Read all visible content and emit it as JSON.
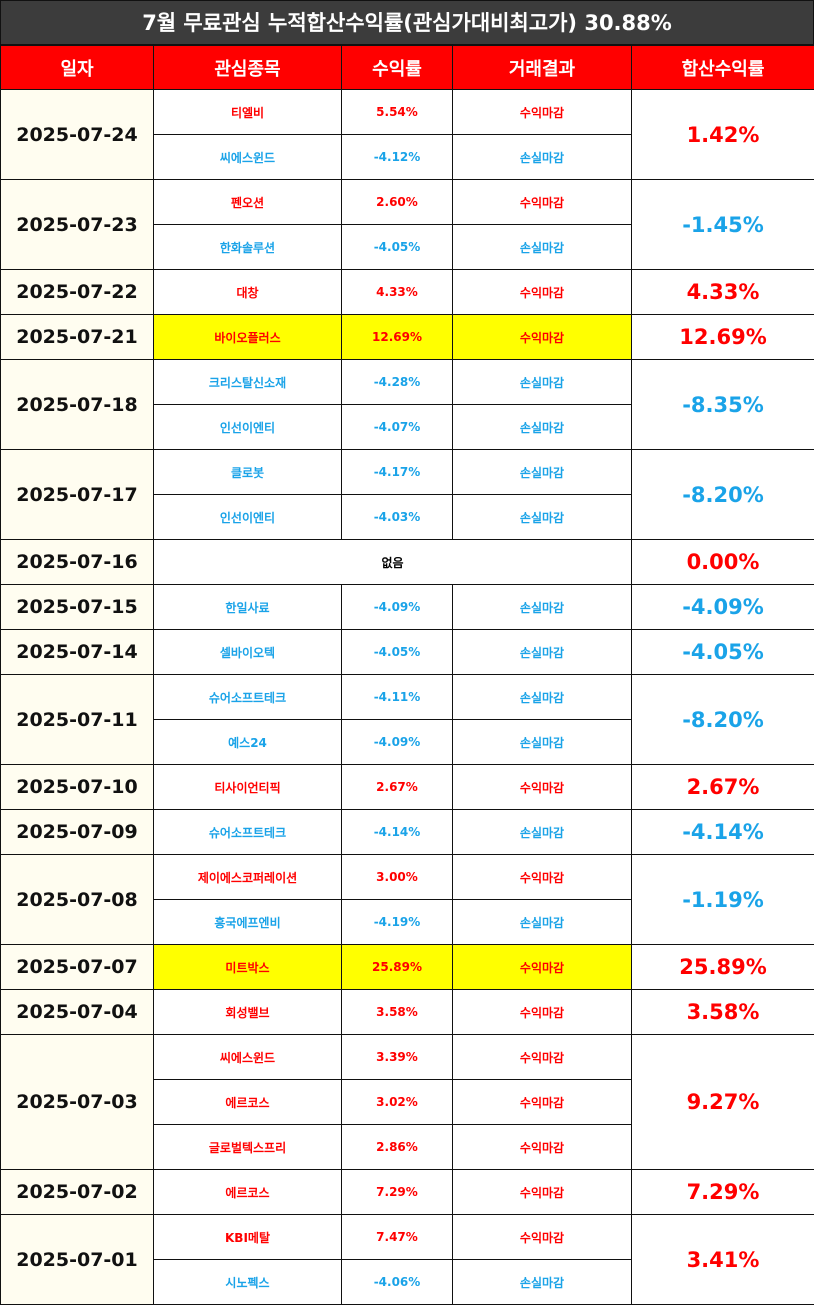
{
  "title": "7월 무료관심 누적합산수익률(관심가대비최고가) 30.88%",
  "headers": [
    "일자",
    "관심종목",
    "수익률",
    "거래결과",
    "합산수익률"
  ],
  "colors": {
    "positive": "#ff0000",
    "negative": "#1aa3e8",
    "header_bg": "#ff0000",
    "highlight": "#ffff00"
  },
  "groups": [
    {
      "date": "2025-07-24",
      "total": "1.42%",
      "total_sign": "pos",
      "rows": [
        {
          "stock": "티엘비",
          "return": "5.54%",
          "result": "수익마감",
          "sign": "pos",
          "highlight": false
        },
        {
          "stock": "씨에스윈드",
          "return": "-4.12%",
          "result": "손실마감",
          "sign": "neg",
          "highlight": false
        }
      ]
    },
    {
      "date": "2025-07-23",
      "total": "-1.45%",
      "total_sign": "neg",
      "rows": [
        {
          "stock": "펜오션",
          "return": "2.60%",
          "result": "수익마감",
          "sign": "pos",
          "highlight": false
        },
        {
          "stock": "한화솔루션",
          "return": "-4.05%",
          "result": "손실마감",
          "sign": "neg",
          "highlight": false
        }
      ]
    },
    {
      "date": "2025-07-22",
      "total": "4.33%",
      "total_sign": "pos",
      "rows": [
        {
          "stock": "대창",
          "return": "4.33%",
          "result": "수익마감",
          "sign": "pos",
          "highlight": false
        }
      ]
    },
    {
      "date": "2025-07-21",
      "total": "12.69%",
      "total_sign": "pos",
      "rows": [
        {
          "stock": "바이오플러스",
          "return": "12.69%",
          "result": "수익마감",
          "sign": "pos",
          "highlight": true
        }
      ]
    },
    {
      "date": "2025-07-18",
      "total": "-8.35%",
      "total_sign": "neg",
      "rows": [
        {
          "stock": "크리스탈신소재",
          "return": "-4.28%",
          "result": "손실마감",
          "sign": "neg",
          "highlight": false
        },
        {
          "stock": "인선이엔티",
          "return": "-4.07%",
          "result": "손실마감",
          "sign": "neg",
          "highlight": false
        }
      ]
    },
    {
      "date": "2025-07-17",
      "total": "-8.20%",
      "total_sign": "neg",
      "rows": [
        {
          "stock": "클로봇",
          "return": "-4.17%",
          "result": "손실마감",
          "sign": "neg",
          "highlight": false
        },
        {
          "stock": "인선이엔티",
          "return": "-4.03%",
          "result": "손실마감",
          "sign": "neg",
          "highlight": false
        }
      ]
    },
    {
      "date": "2025-07-16",
      "total": "0.00%",
      "total_sign": "pos",
      "none_text": "없음",
      "rows": []
    },
    {
      "date": "2025-07-15",
      "total": "-4.09%",
      "total_sign": "neg",
      "rows": [
        {
          "stock": "한일사료",
          "return": "-4.09%",
          "result": "손실마감",
          "sign": "neg",
          "highlight": false
        }
      ]
    },
    {
      "date": "2025-07-14",
      "total": "-4.05%",
      "total_sign": "neg",
      "rows": [
        {
          "stock": "셀바이오텍",
          "return": "-4.05%",
          "result": "손실마감",
          "sign": "neg",
          "highlight": false
        }
      ]
    },
    {
      "date": "2025-07-11",
      "total": "-8.20%",
      "total_sign": "neg",
      "rows": [
        {
          "stock": "슈어소프트테크",
          "return": "-4.11%",
          "result": "손실마감",
          "sign": "neg",
          "highlight": false
        },
        {
          "stock": "예스24",
          "return": "-4.09%",
          "result": "손실마감",
          "sign": "neg",
          "highlight": false
        }
      ]
    },
    {
      "date": "2025-07-10",
      "total": "2.67%",
      "total_sign": "pos",
      "rows": [
        {
          "stock": "티사이언티픽",
          "return": "2.67%",
          "result": "수익마감",
          "sign": "pos",
          "highlight": false
        }
      ]
    },
    {
      "date": "2025-07-09",
      "total": "-4.14%",
      "total_sign": "neg",
      "rows": [
        {
          "stock": "슈어소프트테크",
          "return": "-4.14%",
          "result": "손실마감",
          "sign": "neg",
          "highlight": false
        }
      ]
    },
    {
      "date": "2025-07-08",
      "total": "-1.19%",
      "total_sign": "neg",
      "rows": [
        {
          "stock": "제이에스코퍼레이션",
          "return": "3.00%",
          "result": "수익마감",
          "sign": "pos",
          "highlight": false
        },
        {
          "stock": "흥국에프엔비",
          "return": "-4.19%",
          "result": "손실마감",
          "sign": "neg",
          "highlight": false
        }
      ]
    },
    {
      "date": "2025-07-07",
      "total": "25.89%",
      "total_sign": "pos",
      "rows": [
        {
          "stock": "미트박스",
          "return": "25.89%",
          "result": "수익마감",
          "sign": "pos",
          "highlight": true
        }
      ]
    },
    {
      "date": "2025-07-04",
      "total": "3.58%",
      "total_sign": "pos",
      "rows": [
        {
          "stock": "회성밸브",
          "return": "3.58%",
          "result": "수익마감",
          "sign": "pos",
          "highlight": false
        }
      ]
    },
    {
      "date": "2025-07-03",
      "total": "9.27%",
      "total_sign": "pos",
      "rows": [
        {
          "stock": "씨에스윈드",
          "return": "3.39%",
          "result": "수익마감",
          "sign": "pos",
          "highlight": false
        },
        {
          "stock": "에르코스",
          "return": "3.02%",
          "result": "수익마감",
          "sign": "pos",
          "highlight": false
        },
        {
          "stock": "글로벌텍스프리",
          "return": "2.86%",
          "result": "수익마감",
          "sign": "pos",
          "highlight": false
        }
      ]
    },
    {
      "date": "2025-07-02",
      "total": "7.29%",
      "total_sign": "pos",
      "rows": [
        {
          "stock": "에르코스",
          "return": "7.29%",
          "result": "수익마감",
          "sign": "pos",
          "highlight": false
        }
      ]
    },
    {
      "date": "2025-07-01",
      "total": "3.41%",
      "total_sign": "pos",
      "rows": [
        {
          "stock": "KBI메탈",
          "return": "7.47%",
          "result": "수익마감",
          "sign": "pos",
          "highlight": false
        },
        {
          "stock": "시노펙스",
          "return": "-4.06%",
          "result": "손실마감",
          "sign": "neg",
          "highlight": false
        }
      ]
    }
  ]
}
